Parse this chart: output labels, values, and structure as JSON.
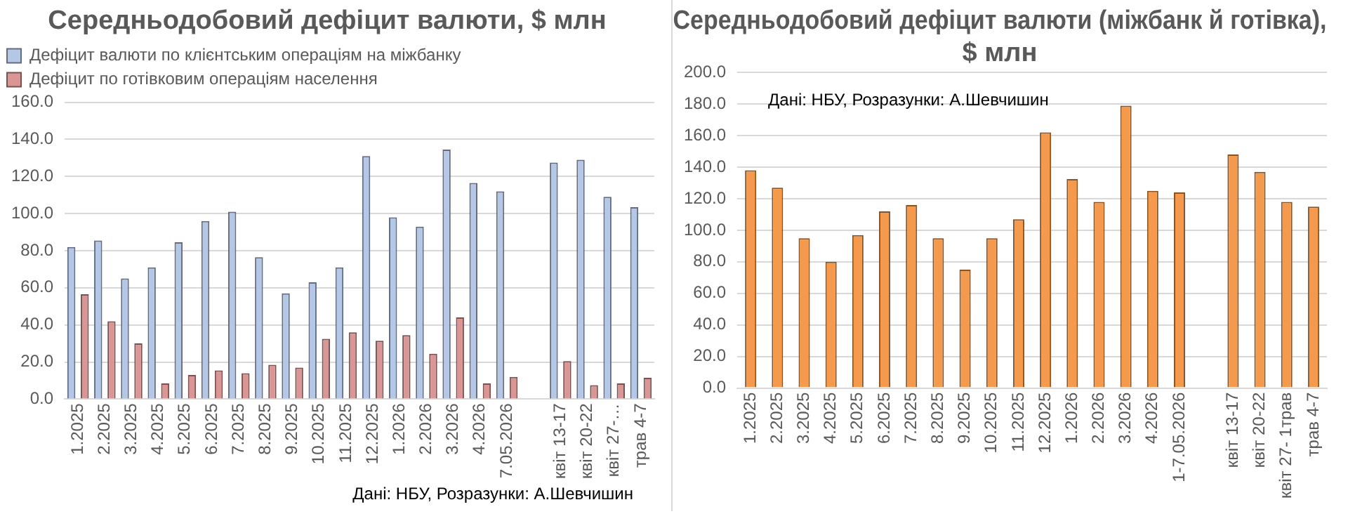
{
  "chart_data": [
    {
      "type": "bar",
      "title": "Середньодобовий дефіцит валюти, $ млн",
      "categories": [
        "1.2025",
        "2.2025",
        "3.2025",
        "4.2025",
        "5.2025",
        "6.2025",
        "7.2025",
        "8.2025",
        "9.2025",
        "10.2025",
        "11.2025",
        "12.2025",
        "1.2026",
        "2.2026",
        "3.2026",
        "4.2026",
        "7.05.2026",
        null,
        "квіт 13-17",
        "квіт 20-22",
        "квіт 27-…",
        "трав 4-7"
      ],
      "series": [
        {
          "name": "Дефіцит валюти по клієнтським операціям на міжбанку",
          "color": "#b4c7e7",
          "values": [
            82,
            85.5,
            65,
            71,
            84.5,
            96,
            101,
            76.5,
            57,
            63,
            71,
            131,
            98,
            93,
            134.5,
            116.5,
            112,
            null,
            127.5,
            129,
            109,
            103.5
          ]
        },
        {
          "name": "Дефіцит по готівковим операціям населення",
          "color": "#d99694",
          "values": [
            56.5,
            42,
            30,
            8.5,
            13,
            15.5,
            14,
            18.5,
            17,
            32.5,
            36,
            31.5,
            34.5,
            24.5,
            44,
            8.5,
            12,
            null,
            20.5,
            7.5,
            8.5,
            11.5
          ]
        }
      ],
      "ylim": [
        0,
        160
      ],
      "yticks": [
        {
          "value": 0,
          "label": "0.0"
        },
        {
          "value": 20,
          "label": "20.0"
        },
        {
          "value": 40,
          "label": "40.0"
        },
        {
          "value": 60,
          "label": "60.0"
        },
        {
          "value": 80,
          "label": "80.0"
        },
        {
          "value": 100,
          "label": "100.0"
        },
        {
          "value": 120,
          "label": "120.0"
        },
        {
          "value": 140,
          "label": "140.0"
        },
        {
          "value": 160,
          "label": "160.0"
        }
      ],
      "grid": "y",
      "legend": "top left",
      "annotations": [
        "Дані: НБУ, Розразунки: А.Шевчишин"
      ]
    },
    {
      "type": "bar",
      "title": "Середньодобовий дефіцит валюти (міжбанк й готівка), $ млн",
      "categories": [
        "1.2025",
        "2.2025",
        "3.2025",
        "4.2025",
        "5.2025",
        "6.2025",
        "7.2025",
        "8.2025",
        "9.2025",
        "10.2025",
        "11.2025",
        "12.2025",
        "1.2026",
        "2.2026",
        "3.2026",
        "4.2026",
        "1-7.05.2026",
        null,
        "квіт 13-17",
        "квіт 20-22",
        "квіт 27- 1трав",
        "трав 4-7"
      ],
      "series": [
        {
          "color": "#f59a4c",
          "values": [
            138,
            127,
            95,
            80,
            97,
            112,
            116,
            95,
            75,
            95,
            107,
            162,
            132.5,
            118,
            179,
            125,
            124,
            null,
            148,
            137,
            118,
            115
          ]
        }
      ],
      "ylim": [
        0,
        200
      ],
      "yticks": [
        {
          "value": 0,
          "label": "0.0"
        },
        {
          "value": 20,
          "label": "20.0"
        },
        {
          "value": 40,
          "label": "40.0"
        },
        {
          "value": 60,
          "label": "60.0"
        },
        {
          "value": 80,
          "label": "80.0"
        },
        {
          "value": 100,
          "label": "100.0"
        },
        {
          "value": 120,
          "label": "120.0"
        },
        {
          "value": 140,
          "label": "140.0"
        },
        {
          "value": 160,
          "label": "160.0"
        },
        {
          "value": 180,
          "label": "180.0"
        },
        {
          "value": 200,
          "label": "200.0"
        }
      ],
      "grid": "y",
      "legend": false,
      "annotations": [
        "Дані: НБУ, Розразунки: А.Шевчишин"
      ]
    }
  ]
}
